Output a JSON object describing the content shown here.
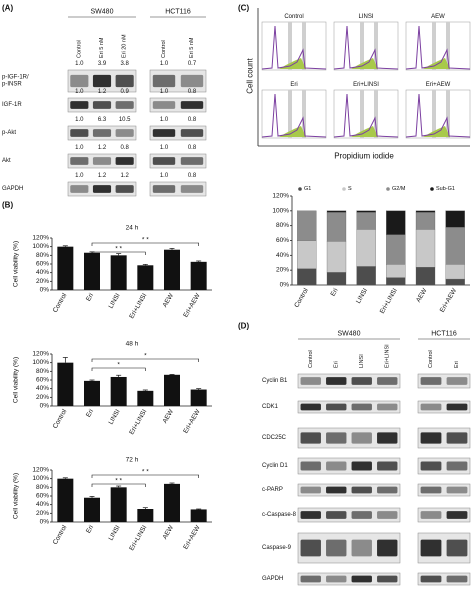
{
  "panel_labels": [
    "(A)",
    "(B)",
    "(C)",
    "(D)"
  ],
  "blot_a": {
    "groups": [
      {
        "name": "SW480",
        "lanes": [
          "Control",
          "Eri 5 nM",
          "Eri 20 nM"
        ]
      },
      {
        "name": "HCT116",
        "lanes": [
          "Control",
          "Eri 5 nM"
        ]
      }
    ],
    "rows": [
      {
        "label": [
          "p-IGF-1R/",
          "p-INSR"
        ],
        "levels": [
          [
            "1.0",
            "3.9",
            "3.8"
          ],
          [
            "1.0",
            "0.7"
          ]
        ]
      },
      {
        "label": [
          "IGF-1R"
        ],
        "levels": [
          [
            "1.0",
            "1.2",
            "0.9"
          ],
          [
            "1.0",
            "0.8"
          ]
        ]
      },
      {
        "label": [
          "p-Akt"
        ],
        "levels": [
          [
            "1.0",
            "6.3",
            "10.5"
          ],
          [
            "1.0",
            "0.8"
          ]
        ]
      },
      {
        "label": [
          "Akt"
        ],
        "levels": [
          [
            "1.0",
            "1.2",
            "0.8"
          ],
          [
            "1.0",
            "0.8"
          ]
        ]
      },
      {
        "label": [
          "GAPDH"
        ],
        "levels": [
          [
            "1.0",
            "1.2",
            "1.2"
          ],
          [
            "1.0",
            "0.8"
          ]
        ]
      }
    ]
  },
  "flow": {
    "y_label": "Cell count",
    "x_label": "Propidium iodide",
    "samples": [
      "Control",
      "LINSI",
      "AEW",
      "Eri",
      "Eri+LINSI",
      "Eri+AEW"
    ]
  },
  "blot_d": {
    "groups": [
      {
        "name": "SW480",
        "lanes": [
          "Control",
          "Eri",
          "LINSI",
          "Eri+LINSI"
        ]
      },
      {
        "name": "HCT116",
        "lanes": [
          "Control",
          "Eri"
        ]
      }
    ],
    "rows": [
      "Cyclin B1",
      "CDK1",
      "CDC25C",
      "Cyclin D1",
      "c-PARP",
      "c-Caspase-8",
      "Caspase-9",
      "GAPDH"
    ]
  },
  "chart_data": [
    {
      "type": "bar",
      "title": "24 h",
      "y_label": "Cell viability (%)",
      "color": "#111111",
      "categories": [
        "Control",
        "Eri",
        "LINSI",
        "Eri+LINSI",
        "AEW",
        "Eri+AEW"
      ],
      "values": [
        100,
        86,
        80,
        57,
        93,
        65
      ],
      "errors": [
        2,
        2,
        4,
        2,
        3,
        2
      ],
      "ylim": [
        0,
        120
      ],
      "yticks": [
        {
          "value": 0,
          "label": "0%"
        },
        {
          "value": 20,
          "label": "20%"
        },
        {
          "value": 40,
          "label": "40%"
        },
        {
          "value": 60,
          "label": "60%"
        },
        {
          "value": 80,
          "label": "80%"
        },
        {
          "value": 100,
          "label": "100%"
        },
        {
          "value": 120,
          "label": "120%"
        }
      ],
      "brackets": [
        {
          "label": "* *",
          "from": "Eri",
          "to": "Eri+LINSI"
        },
        {
          "label": "* *",
          "from": "Eri",
          "to": "Eri+AEW"
        }
      ]
    },
    {
      "type": "bar",
      "title": "48 h",
      "y_label": "Cell viability (%)",
      "color": "#111111",
      "categories": [
        "Control",
        "Eri",
        "LINSI",
        "Eri+LINSI",
        "AEW",
        "Eri+AEW"
      ],
      "values": [
        100,
        58,
        67,
        35,
        72,
        38
      ],
      "errors": [
        12,
        2,
        4,
        2,
        1,
        2
      ],
      "ylim": [
        0,
        120
      ],
      "yticks": [
        {
          "value": 0,
          "label": "0%"
        },
        {
          "value": 20,
          "label": "20%"
        },
        {
          "value": 40,
          "label": "40%"
        },
        {
          "value": 60,
          "label": "60%"
        },
        {
          "value": 80,
          "label": "80%"
        },
        {
          "value": 100,
          "label": "100%"
        },
        {
          "value": 120,
          "label": "120%"
        }
      ],
      "brackets": [
        {
          "label": "*",
          "from": "Eri",
          "to": "Eri+LINSI"
        },
        {
          "label": "*",
          "from": "Eri",
          "to": "Eri+AEW"
        }
      ]
    },
    {
      "type": "bar",
      "title": "72 h",
      "y_label": "Cell viability (%)",
      "color": "#111111",
      "categories": [
        "Control",
        "Eri",
        "LINSI",
        "Eri+LINSI",
        "AEW",
        "Eri+AEW"
      ],
      "values": [
        100,
        56,
        80,
        30,
        88,
        29
      ],
      "errors": [
        2,
        3,
        3,
        3,
        2,
        1
      ],
      "ylim": [
        0,
        120
      ],
      "yticks": [
        {
          "value": 0,
          "label": "0%"
        },
        {
          "value": 20,
          "label": "20%"
        },
        {
          "value": 40,
          "label": "40%"
        },
        {
          "value": 60,
          "label": "60%"
        },
        {
          "value": 80,
          "label": "80%"
        },
        {
          "value": 100,
          "label": "100%"
        },
        {
          "value": 120,
          "label": "120%"
        }
      ],
      "brackets": [
        {
          "label": "* *",
          "from": "Eri",
          "to": "Eri+LINSI"
        },
        {
          "label": "* *",
          "from": "Eri",
          "to": "Eri+AEW"
        }
      ]
    },
    {
      "type": "stacked_bar",
      "categories": [
        "Control",
        "Eri",
        "LINSI",
        "Eri+LINSI",
        "AEW",
        "Eri+AEW"
      ],
      "series": [
        {
          "name": "G1",
          "color": "#4d4d4d",
          "values": [
            22,
            17,
            25,
            10,
            24,
            8
          ]
        },
        {
          "name": "S",
          "color": "#c8c8c8",
          "values": [
            38,
            42,
            50,
            18,
            51,
            20
          ]
        },
        {
          "name": "G2/M",
          "color": "#8c8c8c",
          "values": [
            40,
            39,
            23,
            40,
            23,
            50
          ]
        },
        {
          "name": "Sub-G1",
          "color": "#1a1a1a",
          "values": [
            0,
            2,
            2,
            32,
            2,
            22
          ]
        }
      ],
      "ylim": [
        0,
        120
      ],
      "yticks": [
        {
          "value": 0,
          "label": "0%"
        },
        {
          "value": 20,
          "label": "20%"
        },
        {
          "value": 40,
          "label": "40%"
        },
        {
          "value": 60,
          "label": "60%"
        },
        {
          "value": 80,
          "label": "80%"
        },
        {
          "value": 100,
          "label": "100%"
        },
        {
          "value": 120,
          "label": "120%"
        }
      ]
    }
  ]
}
